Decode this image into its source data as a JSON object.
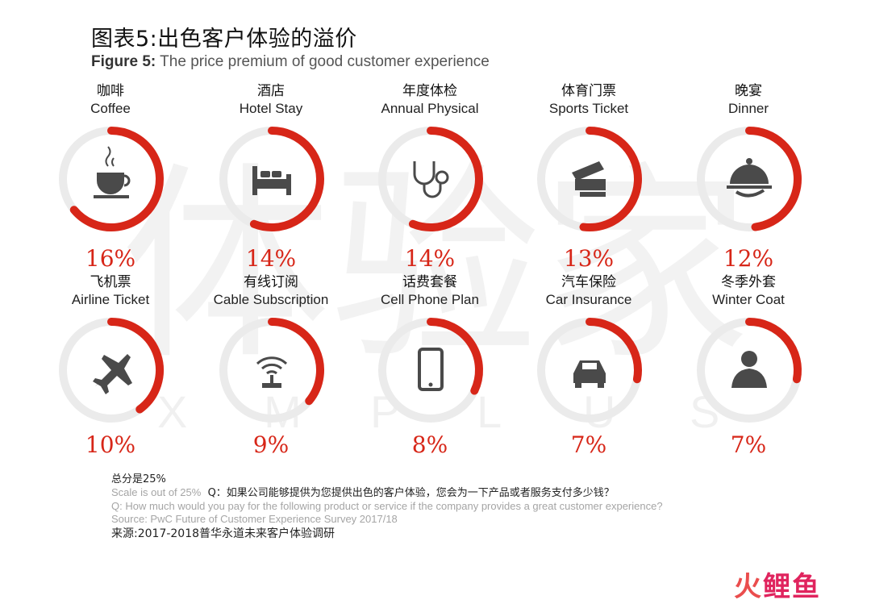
{
  "title_cn": "图表5:出色客户体验的溢价",
  "title_en_bold": "Figure 5:",
  "title_en": " The price premium of good customer experience",
  "watermark": {
    "text": "体验家",
    "letters": [
      "X",
      "M",
      "P",
      "L",
      "U",
      "S"
    ]
  },
  "chart_data": {
    "type": "pie",
    "scale_max": 25,
    "unit": "%",
    "categories": [
      {
        "cn": "咖啡",
        "en": "Coffee",
        "value": 16,
        "label": "16%",
        "icon": "coffee-cup-icon"
      },
      {
        "cn": "酒店",
        "en": "Hotel Stay",
        "value": 14,
        "label": "14%",
        "icon": "bed-icon"
      },
      {
        "cn": "年度体检",
        "en": "Annual Physical",
        "value": 14,
        "label": "14%",
        "icon": "stethoscope-icon"
      },
      {
        "cn": "体育门票",
        "en": "Sports Ticket",
        "value": 13,
        "label": "13%",
        "icon": "ticket-icon"
      },
      {
        "cn": "晚宴",
        "en": "Dinner",
        "value": 12,
        "label": "12%",
        "icon": "cloche-icon"
      },
      {
        "cn": "飞机票",
        "en": "Airline Ticket",
        "value": 10,
        "label": "10%",
        "icon": "airplane-icon"
      },
      {
        "cn": "有线订阅",
        "en": "Cable Subscription",
        "value": 9,
        "label": "9%",
        "icon": "wifi-router-icon"
      },
      {
        "cn": "话费套餐",
        "en": "Cell Phone Plan",
        "value": 8,
        "label": "8%",
        "icon": "phone-icon"
      },
      {
        "cn": "汽车保险",
        "en": "Car Insurance",
        "value": 7,
        "label": "7%",
        "icon": "car-icon"
      },
      {
        "cn": "冬季外套",
        "en": "Winter Coat",
        "value": 7,
        "label": "7%",
        "icon": "coat-icon"
      }
    ]
  },
  "colors": {
    "accent": "#d72618",
    "track": "#ebebeb",
    "icon": "#4a4a4a"
  },
  "notes": {
    "scale_cn": "总分是25%",
    "scale_en": "Scale is out of 25%",
    "question_cn": "Q：如果公司能够提供为您提供出色的客户体验，您会为一下产品或者服务支付多少钱？",
    "question_en": "Q: How much would you pay for the following product or service if the company provides a great customer experience?",
    "source_en": "Source: PwC Future of Customer Experience Survey 2017/18",
    "source_cn": "来源:2017-2018普华永道未来客户体验调研"
  },
  "logo": {
    "part1": "火",
    "part2": "鲤鱼"
  }
}
